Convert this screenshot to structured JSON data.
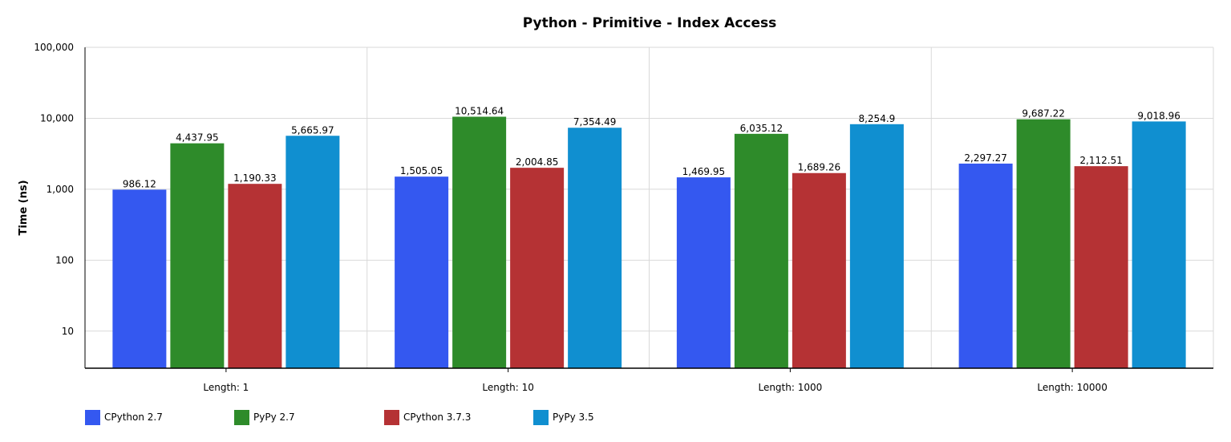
{
  "chart_data": {
    "type": "bar",
    "title": "Python - Primitive - Index Access",
    "ylabel": "Time (ns)",
    "xlabel": "",
    "yscale": "log",
    "ylim": [
      3,
      100000
    ],
    "yticks": [
      "10",
      "100",
      "1,000",
      "10,000",
      "100,000"
    ],
    "ytick_values": [
      10,
      100,
      1000,
      10000,
      100000
    ],
    "grid": true,
    "legend_position": "bottom-left",
    "categories": [
      "Length: 1",
      "Length: 10",
      "Length: 1000",
      "Length: 10000"
    ],
    "series": [
      {
        "name": "CPython 2.7",
        "color": "#3458f0",
        "values": [
          986.12,
          1505.05,
          1469.95,
          2297.27
        ],
        "labels": [
          "986.12",
          "1,505.05",
          "1,469.95",
          "2,297.27"
        ]
      },
      {
        "name": "PyPy 2.7",
        "color": "#2e8b2a",
        "values": [
          4437.95,
          10514.64,
          6035.12,
          9687.22
        ],
        "labels": [
          "4,437.95",
          "10,514.64",
          "6,035.12",
          "9,687.22"
        ]
      },
      {
        "name": "CPython 3.7.3",
        "color": "#b53234",
        "values": [
          1190.33,
          2004.85,
          1689.26,
          2112.51
        ],
        "labels": [
          "1,190.33",
          "2,004.85",
          "1,689.26",
          "2,112.51"
        ]
      },
      {
        "name": "PyPy 3.5",
        "color": "#108fd0",
        "values": [
          5665.97,
          7354.49,
          8254.9,
          9018.96
        ],
        "labels": [
          "5,665.97",
          "7,354.49",
          "8,254.9",
          "9,018.96"
        ]
      }
    ]
  }
}
